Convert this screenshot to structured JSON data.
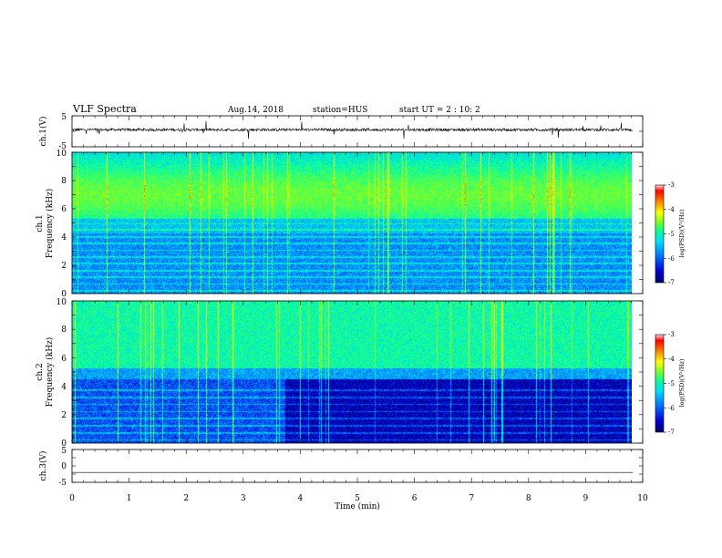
{
  "header": {
    "title": "VLF Spectra",
    "date": "Aug.14, 2018",
    "station": "station=HUS",
    "start_ut": "start  UT =   2 : 10: 2"
  },
  "chart_data": [
    {
      "name": "ch1-waveform",
      "type": "line",
      "ylabel": "ch.1(V)",
      "ylim": [
        -5,
        5
      ],
      "yticks": [
        "5",
        "-5"
      ],
      "baseline_v": 0.5
    },
    {
      "name": "ch1-spectrogram",
      "type": "heatmap",
      "ylabel_top": "ch.1",
      "ylabel": "Frequency  (kHz)",
      "ylim": [
        0,
        10
      ],
      "yticks": [
        "0",
        "2",
        "4",
        "6",
        "8",
        "10"
      ],
      "colorbar": {
        "label": "log(PSD)(V²/Hz)",
        "range": [
          -7,
          -3
        ],
        "ticks": [
          "-3",
          "-4",
          "-5",
          "-6",
          "-7"
        ]
      }
    },
    {
      "name": "ch2-spectrogram",
      "type": "heatmap",
      "ylabel_top": "ch.2",
      "ylabel": "Frequency  (kHz)",
      "ylim": [
        0,
        10
      ],
      "yticks": [
        "0",
        "2",
        "4",
        "6",
        "8",
        "10"
      ],
      "colorbar": {
        "label": "log(PSD)(V²/Hz)",
        "range": [
          -7,
          -3
        ],
        "ticks": [
          "-3",
          "-4",
          "-5",
          "-6",
          "-7"
        ]
      }
    },
    {
      "name": "ch3-waveform",
      "type": "line",
      "ylabel": "ch.3(V)",
      "ylim": [
        -5,
        5
      ],
      "yticks": [
        "5",
        "0",
        "-5"
      ],
      "baseline_v": -2
    }
  ],
  "x_axis": {
    "label": "Time  (min)",
    "range": [
      0,
      10
    ],
    "ticks": [
      "0",
      "1",
      "2",
      "3",
      "4",
      "5",
      "6",
      "7",
      "8",
      "9",
      "10"
    ],
    "data_end_min": 9.83
  },
  "colors": {
    "colormap": [
      "#000066",
      "#0000cc",
      "#0066ff",
      "#00ccff",
      "#00ffaa",
      "#66ff33",
      "#ccff00",
      "#ffff00",
      "#ff9900",
      "#ff0000",
      "#ffffff"
    ]
  }
}
